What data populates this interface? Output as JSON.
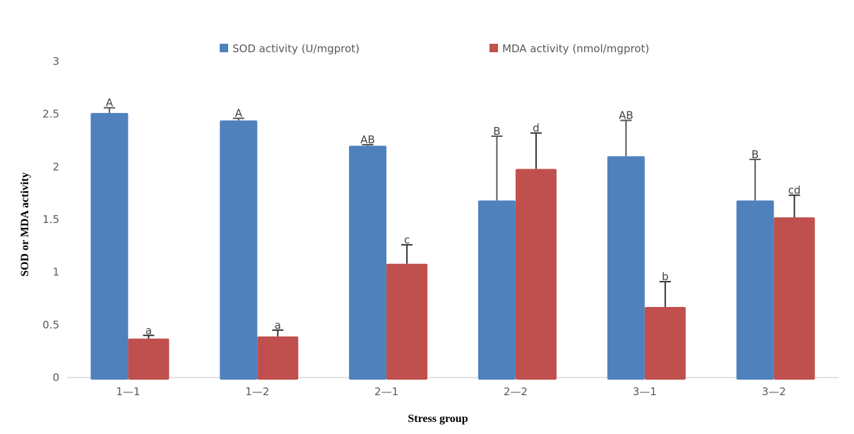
{
  "chart_data": {
    "type": "bar",
    "title": "",
    "xlabel": "Stress group",
    "ylabel": "SOD or MDA activity",
    "ylim": [
      0,
      3
    ],
    "yticks": [
      0,
      0.5,
      1,
      1.5,
      2,
      2.5,
      3
    ],
    "ytick_labels": [
      "0",
      "0.5",
      "1",
      "1.5",
      "2",
      "2.5",
      "3"
    ],
    "grid": false,
    "legend_position": "top",
    "categories": [
      "1—1",
      "1—2",
      "2—1",
      "2—2",
      "3—1",
      "3—2"
    ],
    "series": [
      {
        "name": "SOD activity (U/mgprot)",
        "color": "#4F81BD",
        "values": [
          2.51,
          2.44,
          2.2,
          1.68,
          2.1,
          1.68
        ],
        "error": [
          0.05,
          0.02,
          0.01,
          0.61,
          0.34,
          0.39
        ],
        "labels": [
          "A",
          "A",
          "AB",
          "B",
          "AB",
          "B"
        ]
      },
      {
        "name": "MDA activity (nmol/mgprot)",
        "color": "#C0504D",
        "values": [
          0.37,
          0.39,
          1.08,
          1.98,
          0.67,
          1.52
        ],
        "error": [
          0.03,
          0.06,
          0.18,
          0.34,
          0.24,
          0.21
        ],
        "labels": [
          "a",
          "a",
          "c",
          "d",
          "b",
          "cd"
        ]
      }
    ]
  }
}
